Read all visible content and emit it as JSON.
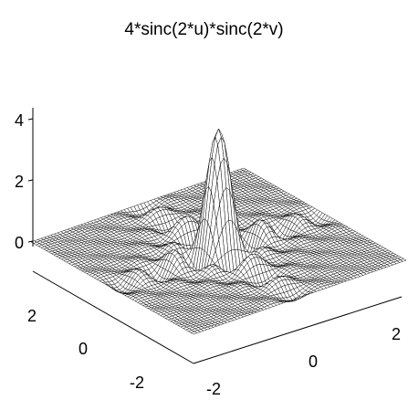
{
  "chart_data": {
    "type": "surface",
    "title": "4*sinc(2*u)*sinc(2*v)",
    "function": {
      "amplitude": 4,
      "u_factor": 2,
      "v_factor": 2
    },
    "u_range": [
      -3,
      3
    ],
    "v_range": [
      -3,
      3
    ],
    "z_range": [
      -1,
      4.6
    ],
    "grid": "mesh",
    "z_ticks": [
      "0",
      "2",
      "4"
    ],
    "u_ticks": [
      "-2",
      "0",
      "2"
    ],
    "v_ticks": [
      "-2",
      "0",
      "2"
    ],
    "mesh_color": "#000000",
    "surface_color": "#ffffff"
  }
}
